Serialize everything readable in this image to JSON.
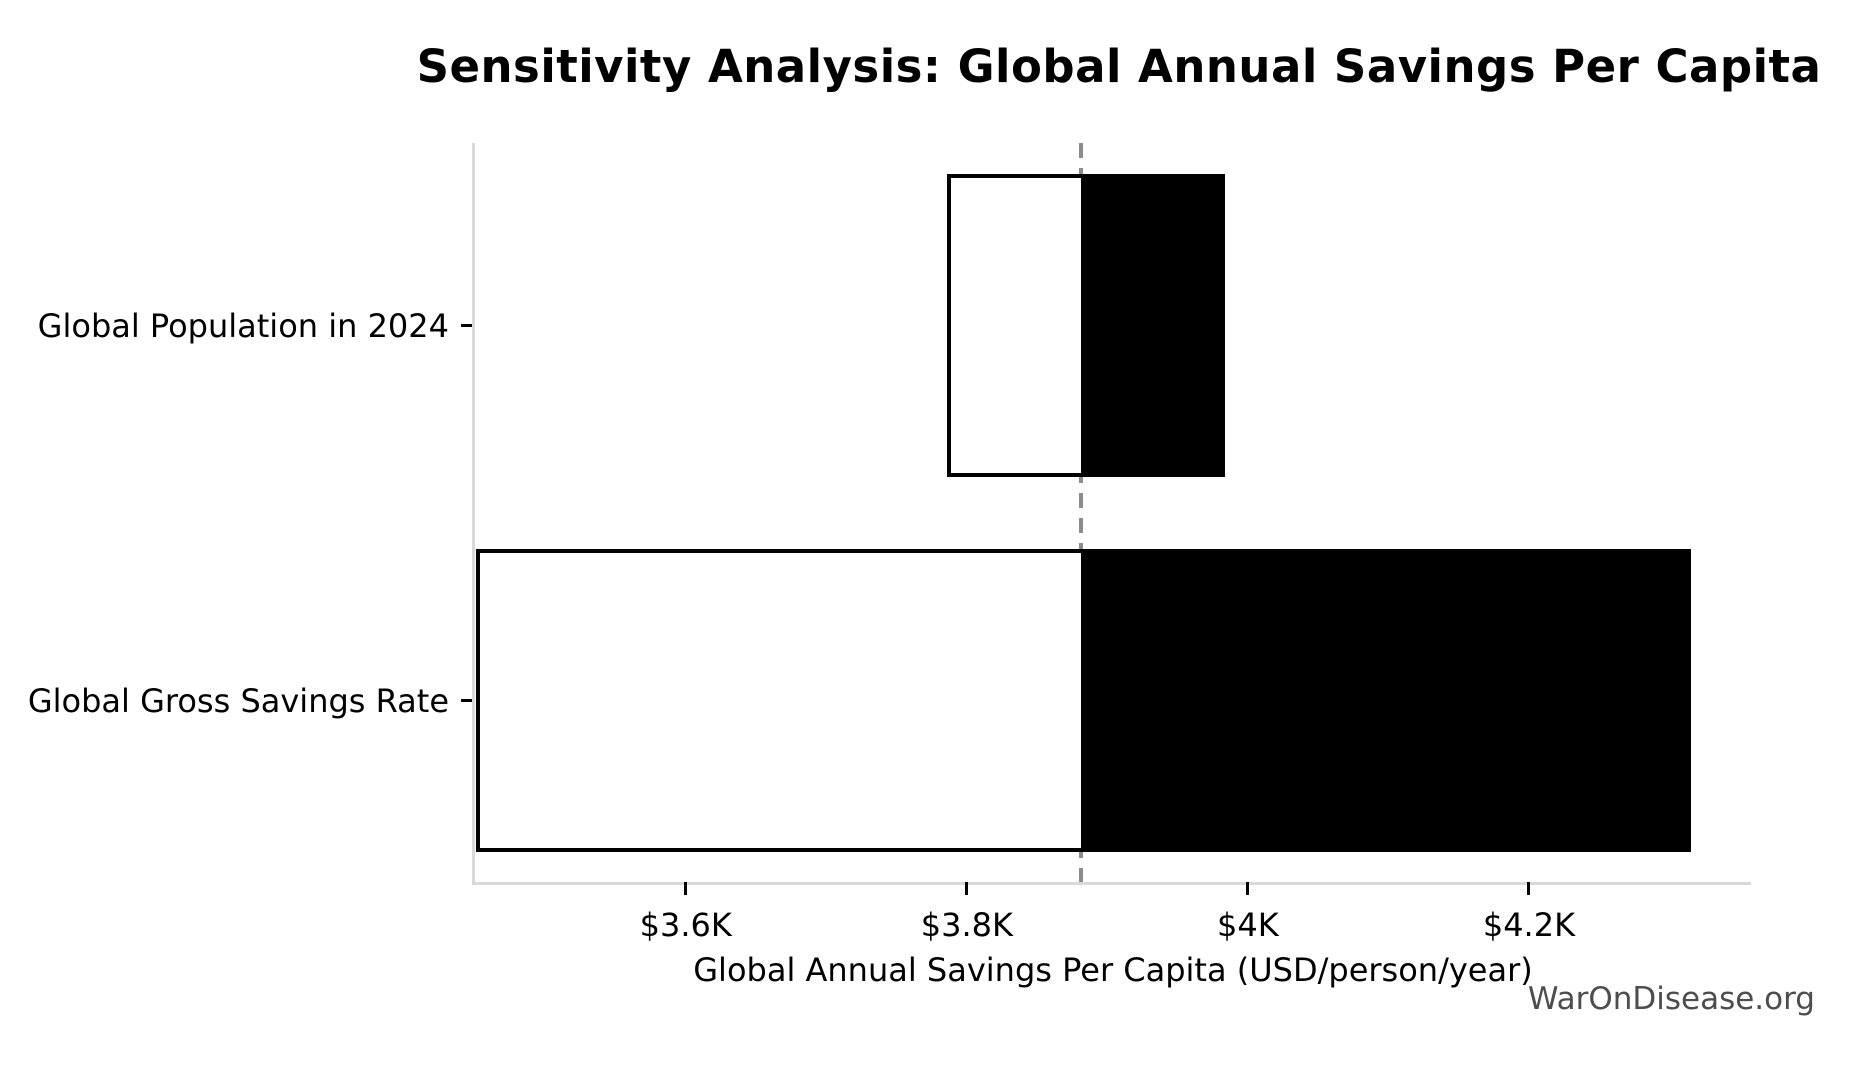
{
  "chart_data": {
    "type": "bar",
    "variant": "tornado-sensitivity",
    "orientation": "horizontal",
    "title": "Sensitivity Analysis: Global Annual Savings Per Capita",
    "xlabel": "Global Annual Savings Per Capita (USD/person/year)",
    "watermark": "WarOnDisease.org",
    "baseline_value": 3881,
    "xlim": [
      3450,
      4358
    ],
    "grid": false,
    "legend_position": "none",
    "xticks": [
      {
        "value": 3600,
        "label": "$3.6K"
      },
      {
        "value": 3800,
        "label": "$3.8K"
      },
      {
        "value": 4000,
        "label": "$4K"
      },
      {
        "value": 4200,
        "label": "$4.2K"
      }
    ],
    "rows": [
      {
        "label": "Global Population in 2024",
        "low": 3786,
        "high": 3984
      },
      {
        "label": "Global Gross Savings Rate",
        "low": 3451,
        "high": 4315
      }
    ],
    "colors": {
      "low_fill": "#ffffff",
      "high_fill": "#000000",
      "bar_edge": "#000000",
      "baseline_dash": "#8c8c8c",
      "axis_spine": "#d9d9d9",
      "tick": "#000000",
      "text": "#000000",
      "watermark": "#4d4d4d",
      "background": "#ffffff"
    }
  }
}
